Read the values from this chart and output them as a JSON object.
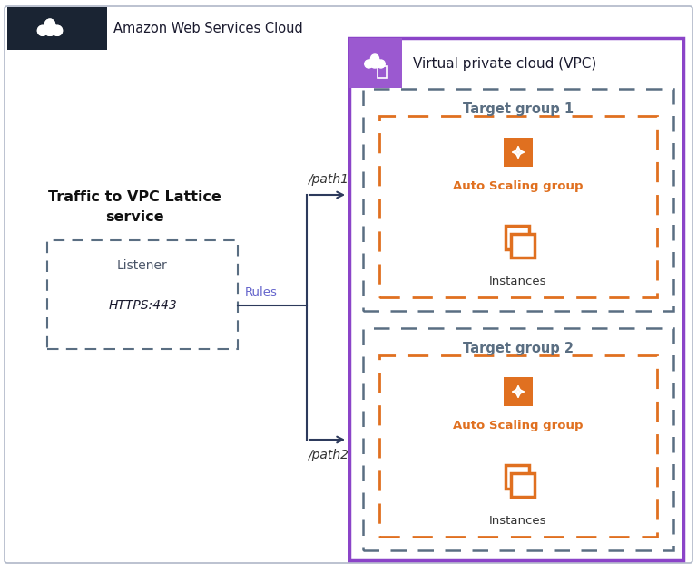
{
  "fig_width": 7.68,
  "fig_height": 6.31,
  "bg_color": "#ffffff",
  "aws_cloud_label": "Amazon Web Services Cloud",
  "aws_header_bg": "#1a2433",
  "vpc_label": "Virtual private cloud (VPC)",
  "vpc_border_color": "#8b44c8",
  "vpc_icon_bg": "#9b59d0",
  "target_group_border_color": "#5a6e82",
  "target_group1_label": "Target group 1",
  "target_group2_label": "Target group 2",
  "auto_scaling_border_color": "#e07020",
  "auto_scaling_label": "Auto Scaling group",
  "traffic_label_line1": "Traffic to VPC Lattice",
  "traffic_label_line2": "service",
  "listener_label": "Listener",
  "https_label": "HTTPS:443",
  "rules_label": "Rules",
  "path1_label": "/path1",
  "path2_label": "/path2",
  "instances_label": "Instances",
  "icon_color": "#e07020",
  "icon_bg_color": "#e07020",
  "arrow_color": "#2d3a5c",
  "text_color_gray": "#5a6e82",
  "text_color_orange": "#e07020"
}
